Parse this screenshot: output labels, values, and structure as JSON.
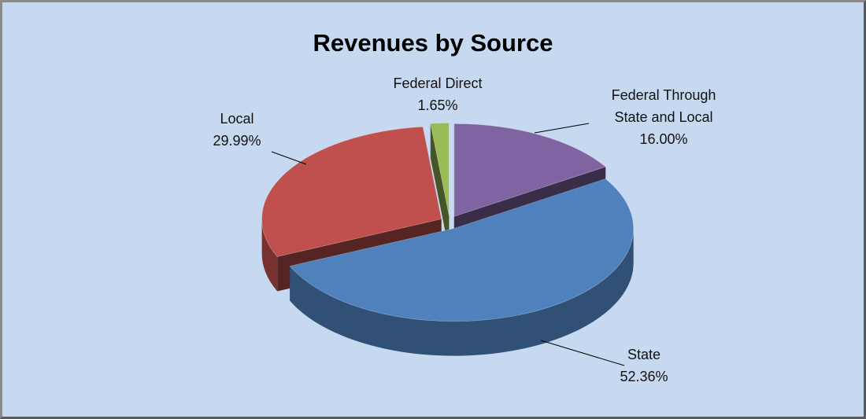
{
  "chart_data": {
    "type": "pie",
    "title": "Revenues by Source",
    "categories": [
      "Federal Through State and Local",
      "State",
      "Local",
      "Federal Direct"
    ],
    "values": [
      16.0,
      52.36,
      29.99,
      1.65
    ],
    "value_labels": [
      "16.00%",
      "52.36%",
      "29.99%",
      "1.65%"
    ],
    "colors": [
      "#8064a2",
      "#4f81bd",
      "#c0504d",
      "#9bbb59"
    ]
  }
}
